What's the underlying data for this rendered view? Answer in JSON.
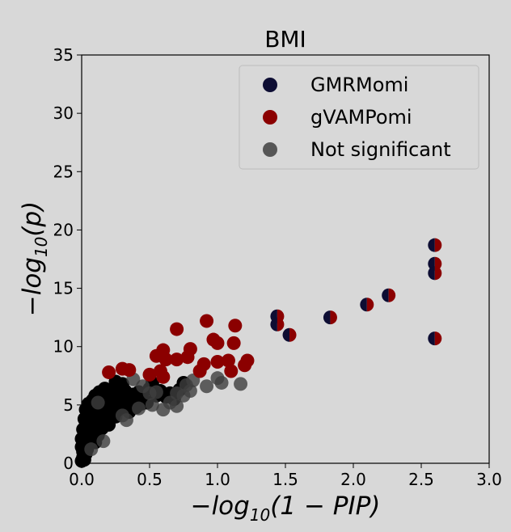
{
  "chart_data": {
    "type": "scatter",
    "title": "BMI",
    "xlabel": "−log10(1 − PIP)",
    "ylabel": "−log10(p)",
    "xlim": [
      0,
      3
    ],
    "ylim": [
      0,
      35
    ],
    "xticks": [
      "0.0",
      "0.5",
      "1.0",
      "1.5",
      "2.0",
      "2.5",
      "3.0"
    ],
    "yticks": [
      "0",
      "5",
      "10",
      "15",
      "20",
      "25",
      "30",
      "35"
    ],
    "grid": false,
    "legend_position": "top-right",
    "colors": {
      "GMRMomi": "#0d0d33",
      "gVAMPomi": "#8b0000",
      "not_significant": "#3f3f3f",
      "dense": "#000000"
    },
    "legend": [
      "GMRMomi",
      "gVAMPomi",
      "Not significant"
    ],
    "series": [
      {
        "name": "GMRMomi + gVAMPomi",
        "style": "split",
        "points": [
          [
            2.6,
            18.7
          ],
          [
            2.6,
            17.1
          ],
          [
            2.6,
            16.3
          ],
          [
            2.6,
            10.7
          ],
          [
            2.26,
            14.4
          ],
          [
            2.1,
            13.6
          ],
          [
            1.83,
            12.5
          ],
          [
            1.44,
            12.6
          ],
          [
            1.44,
            11.9
          ],
          [
            1.53,
            11.0
          ]
        ]
      },
      {
        "name": "gVAMPomi",
        "style": "gVAMPomi",
        "points": [
          [
            0.2,
            7.8
          ],
          [
            0.3,
            8.1
          ],
          [
            0.35,
            8.0
          ],
          [
            0.5,
            7.6
          ],
          [
            0.55,
            9.2
          ],
          [
            0.6,
            9.7
          ],
          [
            0.62,
            8.9
          ],
          [
            0.58,
            7.9
          ],
          [
            0.6,
            7.4
          ],
          [
            0.7,
            11.5
          ],
          [
            0.7,
            8.9
          ],
          [
            0.78,
            9.1
          ],
          [
            0.8,
            9.8
          ],
          [
            0.87,
            7.9
          ],
          [
            0.9,
            8.5
          ],
          [
            0.92,
            12.2
          ],
          [
            0.97,
            10.6
          ],
          [
            1.0,
            10.3
          ],
          [
            1.0,
            8.7
          ],
          [
            1.08,
            8.8
          ],
          [
            1.1,
            7.9
          ],
          [
            1.12,
            10.3
          ],
          [
            1.13,
            11.8
          ],
          [
            1.2,
            8.4
          ],
          [
            1.22,
            8.8
          ]
        ]
      },
      {
        "name": "Not significant",
        "style": "not_significant",
        "points": [
          [
            0.45,
            6.6
          ],
          [
            0.5,
            6.0
          ],
          [
            0.55,
            6.1
          ],
          [
            0.6,
            4.6
          ],
          [
            0.65,
            5.2
          ],
          [
            0.7,
            4.9
          ],
          [
            0.7,
            6.0
          ],
          [
            0.75,
            5.8
          ],
          [
            0.77,
            6.7
          ],
          [
            0.8,
            6.2
          ],
          [
            0.82,
            7.1
          ],
          [
            0.92,
            6.6
          ],
          [
            1.0,
            7.3
          ],
          [
            1.03,
            6.9
          ],
          [
            1.17,
            6.8
          ],
          [
            0.38,
            7.2
          ],
          [
            0.33,
            3.7
          ],
          [
            0.16,
            1.9
          ],
          [
            0.12,
            5.2
          ],
          [
            0.42,
            4.7
          ],
          [
            0.52,
            5.0
          ],
          [
            0.3,
            4.1
          ],
          [
            0.07,
            1.2
          ]
        ]
      },
      {
        "name": "Not significant (dense cluster)",
        "style": "dense",
        "points": [
          [
            0.0,
            0.2
          ],
          [
            0.01,
            0.5
          ],
          [
            0.02,
            0.3
          ],
          [
            0.01,
            1.0
          ],
          [
            0.03,
            0.8
          ],
          [
            0.02,
            1.5
          ],
          [
            0.04,
            1.2
          ],
          [
            0.03,
            2.0
          ],
          [
            0.05,
            1.7
          ],
          [
            0.04,
            2.5
          ],
          [
            0.06,
            2.2
          ],
          [
            0.05,
            3.0
          ],
          [
            0.07,
            2.7
          ],
          [
            0.06,
            3.5
          ],
          [
            0.08,
            3.2
          ],
          [
            0.07,
            4.0
          ],
          [
            0.09,
            3.7
          ],
          [
            0.08,
            4.4
          ],
          [
            0.1,
            4.1
          ],
          [
            0.09,
            4.8
          ],
          [
            0.11,
            4.5
          ],
          [
            0.12,
            3.9
          ],
          [
            0.13,
            4.6
          ],
          [
            0.14,
            5.0
          ],
          [
            0.15,
            4.3
          ],
          [
            0.16,
            5.2
          ],
          [
            0.17,
            4.7
          ],
          [
            0.18,
            5.5
          ],
          [
            0.19,
            4.9
          ],
          [
            0.2,
            5.8
          ],
          [
            0.21,
            5.3
          ],
          [
            0.22,
            6.0
          ],
          [
            0.23,
            5.5
          ],
          [
            0.24,
            6.3
          ],
          [
            0.25,
            5.8
          ],
          [
            0.26,
            6.6
          ],
          [
            0.27,
            5.0
          ],
          [
            0.28,
            6.0
          ],
          [
            0.3,
            5.3
          ],
          [
            0.32,
            6.2
          ],
          [
            0.34,
            5.5
          ],
          [
            0.36,
            5.0
          ],
          [
            0.38,
            5.9
          ],
          [
            0.4,
            5.4
          ],
          [
            0.42,
            6.1
          ],
          [
            0.45,
            5.6
          ],
          [
            0.48,
            5.2
          ],
          [
            0.5,
            6.4
          ],
          [
            0.52,
            6.9
          ],
          [
            0.55,
            5.8
          ],
          [
            0.58,
            6.2
          ],
          [
            0.62,
            5.7
          ],
          [
            0.65,
            6.0
          ],
          [
            0.68,
            5.5
          ],
          [
            0.72,
            6.3
          ],
          [
            0.75,
            6.9
          ],
          [
            0.03,
            3.3
          ],
          [
            0.05,
            3.9
          ],
          [
            0.1,
            2.8
          ],
          [
            0.12,
            3.1
          ],
          [
            0.14,
            3.4
          ],
          [
            0.16,
            3.8
          ],
          [
            0.18,
            4.2
          ],
          [
            0.2,
            4.5
          ],
          [
            0.22,
            4.8
          ],
          [
            0.02,
            2.6
          ],
          [
            0.04,
            3.6
          ],
          [
            0.06,
            4.2
          ],
          [
            0.08,
            2.2
          ],
          [
            0.1,
            1.8
          ],
          [
            0.12,
            2.4
          ],
          [
            0.15,
            3.0
          ],
          [
            0.2,
            3.3
          ],
          [
            0.25,
            4.0
          ],
          [
            0.28,
            4.6
          ],
          [
            0.0,
            1.4
          ],
          [
            0.0,
            2.1
          ],
          [
            0.01,
            2.9
          ],
          [
            0.02,
            3.8
          ],
          [
            0.03,
            4.6
          ],
          [
            0.05,
            5.1
          ],
          [
            0.08,
            5.4
          ],
          [
            0.1,
            5.8
          ],
          [
            0.13,
            6.1
          ],
          [
            0.17,
            6.4
          ],
          [
            0.25,
            7.0
          ],
          [
            0.3,
            6.8
          ],
          [
            0.35,
            4.4
          ],
          [
            0.4,
            4.8
          ],
          [
            0.44,
            5.1
          ]
        ]
      }
    ]
  }
}
